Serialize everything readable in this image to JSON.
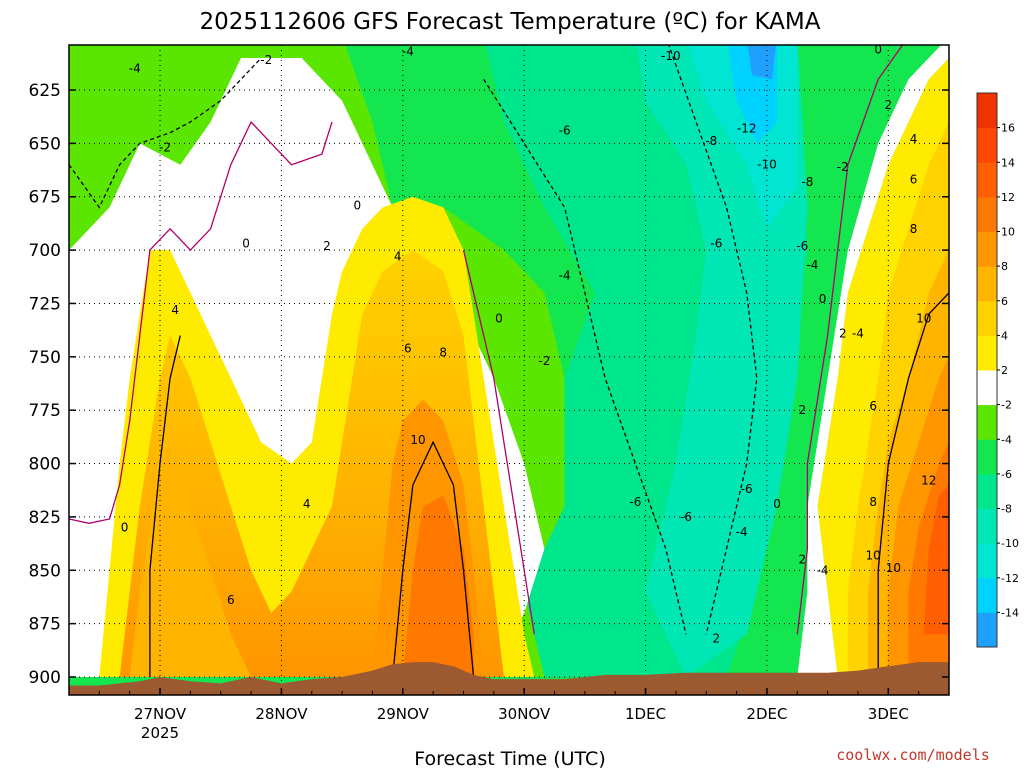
{
  "chart_data": {
    "type": "heatmap",
    "title": "2025112606 GFS Forecast Temperature (ºC) for KAMA",
    "xlabel": "Forecast Time (UTC)",
    "ylabel": "",
    "y_axis_units": "hPa",
    "y_reversed": true,
    "ylim": [
      900,
      600
    ],
    "yticks": [
      625,
      650,
      675,
      700,
      725,
      750,
      775,
      800,
      825,
      850,
      875,
      900
    ],
    "ytick_labels": [
      "625",
      "650",
      "675",
      "700",
      "725",
      "750",
      "775",
      "800",
      "825",
      "850",
      "875",
      "900"
    ],
    "x_axis_units": "hours since 2025-11-26 00Z",
    "xlim": [
      6,
      180
    ],
    "xticks": [
      24,
      48,
      72,
      96,
      120,
      144,
      168
    ],
    "xtick_labels": [
      "27NOV",
      "28NOV",
      "29NOV",
      "30NOV",
      "1DEC",
      "2DEC",
      "3DEC"
    ],
    "year_label": "2025",
    "colorbar": {
      "levels": [
        -16,
        -14,
        -12,
        -10,
        -8,
        -6,
        -4,
        -2,
        2,
        4,
        6,
        8,
        10,
        12,
        14,
        16,
        18
      ],
      "labels": [
        "-14",
        "-12",
        "-10",
        "-8",
        "-6",
        "-4",
        "-2",
        "2",
        "4",
        "6",
        "8",
        "10",
        "12",
        "14",
        "16"
      ],
      "colors": [
        "#1fa0ff",
        "#00d2ff",
        "#00e6d2",
        "#00e6b4",
        "#00e68c",
        "#14e650",
        "#5ae600",
        "#ffffff",
        "#ffeb00",
        "#ffd200",
        "#ffb400",
        "#ff9600",
        "#ff7800",
        "#ff5f00",
        "#ff4600",
        "#f03200"
      ]
    },
    "terrain_color": "#9c5a32",
    "surface_pressure": [
      [
        6,
        904
      ],
      [
        12,
        904
      ],
      [
        20,
        902
      ],
      [
        24,
        900
      ],
      [
        30,
        902
      ],
      [
        36,
        903
      ],
      [
        42,
        900
      ],
      [
        48,
        903
      ],
      [
        54,
        901
      ],
      [
        60,
        900
      ],
      [
        66,
        897
      ],
      [
        70,
        894
      ],
      [
        74,
        893
      ],
      [
        78,
        893
      ],
      [
        82,
        895
      ],
      [
        86,
        899
      ],
      [
        90,
        901
      ],
      [
        96,
        901
      ],
      [
        104,
        901
      ],
      [
        112,
        899
      ],
      [
        120,
        899
      ],
      [
        128,
        898
      ],
      [
        136,
        898
      ],
      [
        144,
        898
      ],
      [
        150,
        898
      ],
      [
        156,
        898
      ],
      [
        162,
        897
      ],
      [
        168,
        895
      ],
      [
        174,
        893
      ],
      [
        180,
        893
      ]
    ],
    "contour_labels": [
      {
        "text": "-4",
        "x": 19,
        "y": 615
      },
      {
        "text": "-2",
        "x": 45,
        "y": 611
      },
      {
        "text": "-4",
        "x": 73,
        "y": 607
      },
      {
        "text": "-10",
        "x": 125,
        "y": 609
      },
      {
        "text": "0",
        "x": 166,
        "y": 606
      },
      {
        "text": "-2",
        "x": 25,
        "y": 652
      },
      {
        "text": "-6",
        "x": 104,
        "y": 644
      },
      {
        "text": "-8",
        "x": 133,
        "y": 649
      },
      {
        "text": "-12",
        "x": 140,
        "y": 643
      },
      {
        "text": "-10",
        "x": 144,
        "y": 660
      },
      {
        "text": "-2",
        "x": 159,
        "y": 661
      },
      {
        "text": "2",
        "x": 168,
        "y": 632
      },
      {
        "text": "4",
        "x": 173,
        "y": 648
      },
      {
        "text": "6",
        "x": 173,
        "y": 667
      },
      {
        "text": "-8",
        "x": 152,
        "y": 668
      },
      {
        "text": "8",
        "x": 173,
        "y": 690
      },
      {
        "text": "-6",
        "x": 134,
        "y": 697
      },
      {
        "text": "-6",
        "x": 151,
        "y": 698
      },
      {
        "text": "-4",
        "x": 153,
        "y": 707
      },
      {
        "text": "0",
        "x": 63,
        "y": 679
      },
      {
        "text": "0",
        "x": 41,
        "y": 697
      },
      {
        "text": "2",
        "x": 57,
        "y": 698
      },
      {
        "text": "4",
        "x": 71,
        "y": 703
      },
      {
        "text": "-4",
        "x": 104,
        "y": 712
      },
      {
        "text": "4",
        "x": 27,
        "y": 728
      },
      {
        "text": "0",
        "x": 91,
        "y": 732
      },
      {
        "text": "0",
        "x": 155,
        "y": 723
      },
      {
        "text": "2",
        "x": 159,
        "y": 739
      },
      {
        "text": "-4",
        "x": 162,
        "y": 739
      },
      {
        "text": "10",
        "x": 175,
        "y": 732
      },
      {
        "text": "6",
        "x": 73,
        "y": 746
      },
      {
        "text": "8",
        "x": 80,
        "y": 748
      },
      {
        "text": "-2",
        "x": 100,
        "y": 752
      },
      {
        "text": "2",
        "x": 151,
        "y": 775
      },
      {
        "text": "6",
        "x": 165,
        "y": 773
      },
      {
        "text": "10",
        "x": 75,
        "y": 789
      },
      {
        "text": "-6",
        "x": 140,
        "y": 812
      },
      {
        "text": "-6",
        "x": 118,
        "y": 818
      },
      {
        "text": "4",
        "x": 53,
        "y": 819
      },
      {
        "text": "12",
        "x": 176,
        "y": 808
      },
      {
        "text": "-6",
        "x": 128,
        "y": 825
      },
      {
        "text": "0",
        "x": 146,
        "y": 819
      },
      {
        "text": "8",
        "x": 165,
        "y": 818
      },
      {
        "text": "0",
        "x": 17,
        "y": 830
      },
      {
        "text": "-4",
        "x": 139,
        "y": 832
      },
      {
        "text": "10",
        "x": 165,
        "y": 843
      },
      {
        "text": "2",
        "x": 151,
        "y": 845
      },
      {
        "text": "-4",
        "x": 155,
        "y": 850
      },
      {
        "text": "10",
        "x": 169,
        "y": 849
      },
      {
        "text": "6",
        "x": 38,
        "y": 864
      },
      {
        "text": "2",
        "x": 134,
        "y": 882
      }
    ]
  },
  "credit": "coolwx.com/models"
}
